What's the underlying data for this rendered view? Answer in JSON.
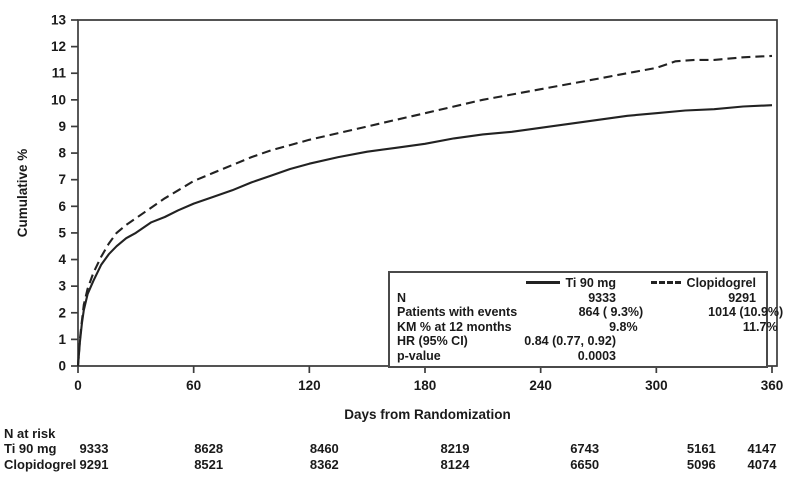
{
  "chart_data": {
    "type": "line",
    "title": "",
    "xlabel": "Days from Randomization",
    "ylabel": "Cumulative %",
    "xlim": [
      0,
      373
    ],
    "ylim": [
      0,
      13
    ],
    "x_ticks": [
      0,
      60,
      120,
      180,
      240,
      300,
      360
    ],
    "y_ticks": [
      0,
      1,
      2,
      3,
      4,
      5,
      6,
      7,
      8,
      9,
      10,
      11,
      12,
      13
    ],
    "grid": false,
    "legend_position": "inside lower-right box",
    "series": [
      {
        "name": "Ti 90 mg",
        "style": "solid",
        "x": [
          0,
          1,
          2,
          3,
          5,
          8,
          12,
          16,
          20,
          25,
          30,
          38,
          45,
          52,
          60,
          70,
          80,
          90,
          100,
          110,
          120,
          135,
          150,
          165,
          180,
          195,
          210,
          225,
          240,
          255,
          270,
          285,
          300,
          315,
          330,
          345,
          360
        ],
        "y": [
          0,
          0.9,
          1.6,
          2.1,
          2.7,
          3.2,
          3.8,
          4.2,
          4.5,
          4.8,
          5.0,
          5.4,
          5.6,
          5.85,
          6.1,
          6.35,
          6.6,
          6.9,
          7.15,
          7.4,
          7.6,
          7.85,
          8.05,
          8.2,
          8.35,
          8.55,
          8.7,
          8.8,
          8.95,
          9.1,
          9.25,
          9.4,
          9.5,
          9.6,
          9.65,
          9.75,
          9.8
        ]
      },
      {
        "name": "Clopidogrel",
        "style": "dashed",
        "x": [
          0,
          1,
          2,
          3,
          5,
          8,
          12,
          16,
          20,
          25,
          30,
          38,
          45,
          52,
          60,
          70,
          80,
          90,
          100,
          110,
          120,
          135,
          150,
          165,
          180,
          195,
          210,
          225,
          240,
          255,
          270,
          285,
          300,
          310,
          320,
          330,
          345,
          360
        ],
        "y": [
          0,
          1.0,
          1.7,
          2.3,
          2.9,
          3.5,
          4.1,
          4.6,
          5.0,
          5.3,
          5.55,
          5.95,
          6.3,
          6.6,
          6.95,
          7.25,
          7.55,
          7.85,
          8.1,
          8.3,
          8.5,
          8.75,
          9.0,
          9.25,
          9.5,
          9.75,
          10.0,
          10.2,
          10.4,
          10.6,
          10.8,
          11.0,
          11.2,
          11.45,
          11.5,
          11.5,
          11.6,
          11.65
        ]
      }
    ]
  },
  "legend": {
    "rows": [
      {
        "label": "N",
        "ti": "9333",
        "clop": "9291"
      },
      {
        "label": "Patients with events",
        "ti": "864 ( 9.3%)",
        "clop": "1014 (10.9%)"
      },
      {
        "label": "KM % at 12 months",
        "ti": "9.8%",
        "clop": "11.7%"
      },
      {
        "label": "HR (95% CI)",
        "ti": "0.84 (0.77, 0.92)",
        "clop": ""
      },
      {
        "label": "p-value",
        "ti": "0.0003",
        "clop": ""
      }
    ]
  },
  "risk_table": {
    "title": "N at risk",
    "days": [
      0,
      60,
      120,
      180,
      240,
      300,
      360
    ],
    "rows": [
      {
        "label": "Ti 90 mg",
        "values": [
          "9333",
          "8628",
          "8460",
          "8219",
          "6743",
          "5161",
          "4147"
        ]
      },
      {
        "label": "Clopidogrel",
        "values": [
          "9291",
          "8521",
          "8362",
          "8124",
          "6650",
          "5096",
          "4074"
        ]
      }
    ]
  }
}
